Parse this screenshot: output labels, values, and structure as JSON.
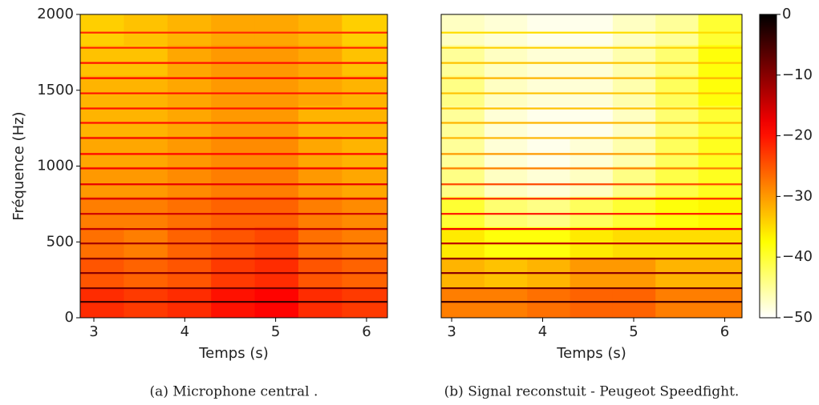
{
  "chart_data": [
    {
      "type": "heatmap",
      "x_label": "Temps (s)",
      "y_label": "Fréquence (Hz)",
      "caption": "(a) Microphone central .",
      "xlim": [
        2.85,
        6.23
      ],
      "xticks": [
        3,
        4,
        5,
        6
      ],
      "ylim": [
        0,
        2000
      ],
      "yticks": [
        0,
        500,
        1000,
        1500,
        2000
      ],
      "x": [
        2.85,
        3.33,
        3.81,
        4.29,
        4.77,
        5.25,
        5.73,
        6.23
      ],
      "y": [
        0,
        200,
        400,
        600,
        800,
        1000,
        1200,
        1400,
        1600,
        1800,
        2000
      ],
      "z": [
        [
          -22,
          -23,
          -22,
          -20,
          -19,
          -22,
          -23
        ],
        [
          -25,
          -26,
          -25,
          -23,
          -22,
          -25,
          -26
        ],
        [
          -27,
          -28,
          -26,
          -25,
          -24,
          -27,
          -28
        ],
        [
          -28,
          -28,
          -27,
          -26,
          -26,
          -28,
          -29
        ],
        [
          -30,
          -30,
          -29,
          -28,
          -28,
          -30,
          -31
        ],
        [
          -31,
          -31,
          -30,
          -29,
          -29,
          -31,
          -32
        ],
        [
          -32,
          -32,
          -31,
          -30,
          -30,
          -32,
          -32
        ],
        [
          -32,
          -32,
          -31,
          -30,
          -30,
          -31,
          -32
        ],
        [
          -33,
          -33,
          -31,
          -30,
          -30,
          -31,
          -33
        ],
        [
          -34,
          -33,
          -32,
          -31,
          -31,
          -32,
          -34
        ]
      ],
      "harmonics": {
        "freqs": [
          105,
          195,
          295,
          390,
          490,
          585,
          685,
          785,
          880,
          985,
          1080,
          1185,
          1285,
          1380,
          1480,
          1580,
          1680,
          1780,
          1880
        ],
        "levels": [
          -5,
          -8,
          -10,
          -10,
          -12,
          -14,
          -15,
          -16,
          -17,
          -18,
          -19,
          -18,
          -20,
          -20,
          -20,
          -19,
          -20,
          -21,
          -22
        ]
      }
    },
    {
      "type": "heatmap",
      "x_label": "Temps (s)",
      "caption": "(b) Signal reconstuit - Peugeot Speedfight.",
      "xlim": [
        2.885,
        6.19
      ],
      "xticks": [
        3,
        4,
        5,
        6
      ],
      "ylim": [
        0,
        2000
      ],
      "x": [
        2.885,
        3.36,
        3.83,
        4.3,
        4.77,
        5.24,
        5.71,
        6.19
      ],
      "y": [
        0,
        200,
        400,
        600,
        800,
        1000,
        1200,
        1400,
        1600,
        1800,
        2000
      ],
      "z": [
        [
          -28,
          -28,
          -27,
          -26,
          -26,
          -28,
          -28
        ],
        [
          -32,
          -33,
          -32,
          -30,
          -30,
          -32,
          -32
        ],
        [
          -36,
          -38,
          -38,
          -36,
          -35,
          -35,
          -35
        ],
        [
          -40,
          -43,
          -44,
          -42,
          -40,
          -38,
          -37
        ],
        [
          -44,
          -47,
          -48,
          -47,
          -44,
          -41,
          -39
        ],
        [
          -45,
          -48,
          -49,
          -48,
          -46,
          -42,
          -39
        ],
        [
          -45,
          -48,
          -49,
          -49,
          -47,
          -43,
          -40
        ],
        [
          -44,
          -47,
          -48,
          -48,
          -46,
          -42,
          -38
        ],
        [
          -45,
          -47,
          -48,
          -48,
          -46,
          -43,
          -38
        ],
        [
          -47,
          -48,
          -49,
          -49,
          -47,
          -45,
          -40
        ]
      ],
      "harmonics": {
        "freqs": [
          105,
          195,
          295,
          390,
          490,
          585,
          685,
          785,
          880,
          985,
          1080,
          1185,
          1285,
          1380,
          1480,
          1580,
          1680,
          1780,
          1880
        ],
        "levels": [
          -5,
          -8,
          -10,
          -11,
          -14,
          -18,
          -20,
          -22,
          -24,
          -28,
          -30,
          -32,
          -32,
          -33,
          -33,
          -32,
          -33,
          -34,
          -35
        ]
      },
      "colorbar": {
        "lim": [
          -50,
          0
        ],
        "ticks": [
          0,
          {
            "value": -10,
            "label": "−10"
          },
          {
            "value": -20,
            "label": "−20"
          },
          {
            "value": -30,
            "label": "−30"
          },
          {
            "value": -40,
            "label": "−40"
          },
          {
            "value": -50,
            "label": "−50"
          }
        ]
      }
    }
  ]
}
